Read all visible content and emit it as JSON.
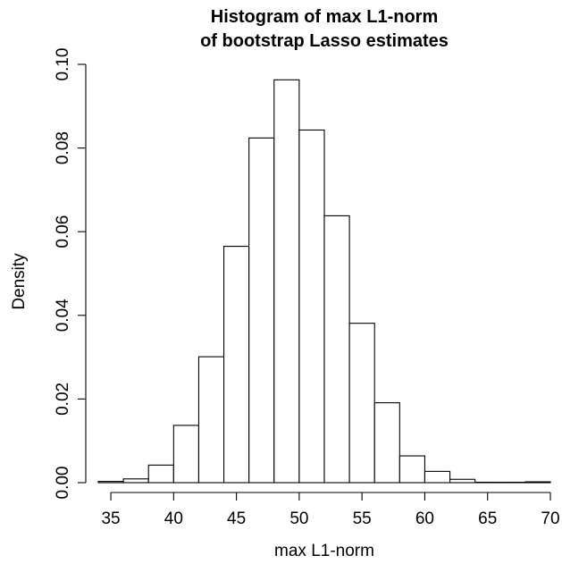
{
  "chart_data": {
    "type": "bar",
    "title_line1": "Histogram of max L1-norm",
    "title_line2": "of bootstrap Lasso estimates",
    "xlabel": "max L1-norm",
    "ylabel": "Density",
    "xlim": [
      34,
      70
    ],
    "ylim": [
      0,
      0.1
    ],
    "x_ticks": [
      "35",
      "40",
      "45",
      "50",
      "55",
      "60",
      "65",
      "70"
    ],
    "y_ticks": [
      "0.00",
      "0.02",
      "0.04",
      "0.06",
      "0.08",
      "0.10"
    ],
    "bin_edges": [
      34,
      36,
      38,
      40,
      42,
      44,
      46,
      48,
      50,
      52,
      54,
      56,
      58,
      60,
      62,
      64,
      66,
      68,
      70
    ],
    "values": [
      0.0003,
      0.0009,
      0.0042,
      0.0137,
      0.0301,
      0.0565,
      0.0824,
      0.0963,
      0.0843,
      0.0638,
      0.0381,
      0.0191,
      0.0064,
      0.0027,
      0.0008,
      0.0001,
      0.0001,
      0.0002
    ],
    "grid": false,
    "legend": "none",
    "bar_fill": "#ffffff",
    "bar_stroke": "#000000"
  }
}
